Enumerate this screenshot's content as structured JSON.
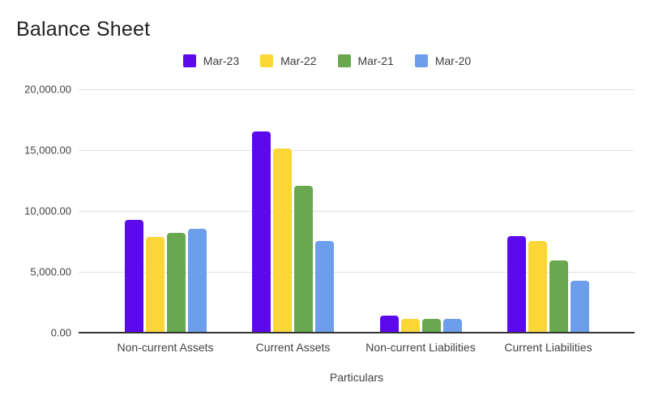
{
  "title": "Balance Sheet",
  "y_ticks": [
    "20,000.00",
    "15,000.00",
    "10,000.00",
    "5,000.00",
    "0.00"
  ],
  "chart_data": {
    "type": "bar",
    "title": "Balance Sheet",
    "xlabel": "Particulars",
    "ylabel": "",
    "ylim": [
      0,
      20000
    ],
    "y_tick_step": 5000,
    "grid": true,
    "legend_position": "top",
    "categories": [
      "Non-current Assets",
      "Current Assets",
      "Non-current Liabilities",
      "Current Liabilities"
    ],
    "series": [
      {
        "name": "Mar-23",
        "color": "#5c0aeb",
        "values": [
          9250,
          16500,
          1400,
          7900
        ]
      },
      {
        "name": "Mar-22",
        "color": "#fad737",
        "values": [
          7850,
          15100,
          1100,
          7500
        ]
      },
      {
        "name": "Mar-21",
        "color": "#6aa84f",
        "values": [
          8200,
          12050,
          1150,
          5950
        ]
      },
      {
        "name": "Mar-20",
        "color": "#6d9eeb",
        "values": [
          8500,
          7550,
          1100,
          4270
        ]
      }
    ]
  }
}
